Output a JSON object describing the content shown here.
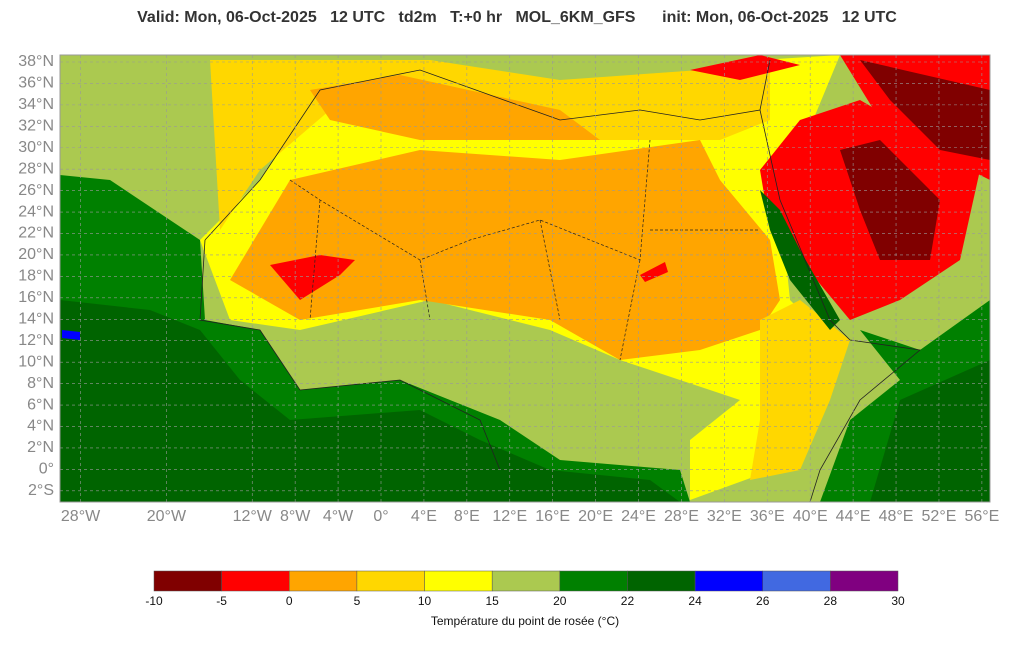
{
  "header": {
    "title": "Valid: Mon, 06-Oct-2025   12 UTC   td2m   T:+0 hr   MOL_6KM_GFS      init: Mon, 06-Oct-2025   12 UTC"
  },
  "map": {
    "lat_ticks": [
      {
        "value": 38,
        "label": "38°N"
      },
      {
        "value": 36,
        "label": "36°N"
      },
      {
        "value": 34,
        "label": "34°N"
      },
      {
        "value": 32,
        "label": "32°N"
      },
      {
        "value": 30,
        "label": "30°N"
      },
      {
        "value": 28,
        "label": "28°N"
      },
      {
        "value": 26,
        "label": "26°N"
      },
      {
        "value": 24,
        "label": "24°N"
      },
      {
        "value": 22,
        "label": "22°N"
      },
      {
        "value": 20,
        "label": "20°N"
      },
      {
        "value": 18,
        "label": "18°N"
      },
      {
        "value": 16,
        "label": "16°N"
      },
      {
        "value": 14,
        "label": "14°N"
      },
      {
        "value": 12,
        "label": "12°N"
      },
      {
        "value": 10,
        "label": "10°N"
      },
      {
        "value": 8,
        "label": "8°N"
      },
      {
        "value": 6,
        "label": "6°N"
      },
      {
        "value": 4,
        "label": "4°N"
      },
      {
        "value": 2,
        "label": "2°N"
      },
      {
        "value": 0,
        "label": "0°"
      },
      {
        "value": -2,
        "label": "2°S"
      }
    ],
    "lon_ticks": [
      {
        "value": -28,
        "label": "28°W"
      },
      {
        "value": -20,
        "label": "20°W"
      },
      {
        "value": -12,
        "label": "12°W"
      },
      {
        "value": -8,
        "label": "8°W"
      },
      {
        "value": -4,
        "label": "4°W"
      },
      {
        "value": 0,
        "label": "0°"
      },
      {
        "value": 4,
        "label": "4°E"
      },
      {
        "value": 8,
        "label": "8°E"
      },
      {
        "value": 12,
        "label": "12°E"
      },
      {
        "value": 16,
        "label": "16°E"
      },
      {
        "value": 20,
        "label": "20°E"
      },
      {
        "value": 24,
        "label": "24°E"
      },
      {
        "value": 28,
        "label": "28°E"
      },
      {
        "value": 32,
        "label": "32°E"
      },
      {
        "value": 36,
        "label": "36°E"
      },
      {
        "value": 40,
        "label": "40°E"
      },
      {
        "value": 44,
        "label": "44°E"
      },
      {
        "value": 48,
        "label": "48°E"
      },
      {
        "value": 52,
        "label": "52°E"
      },
      {
        "value": 56,
        "label": "56°E"
      }
    ]
  },
  "legend": {
    "ticks": [
      -10,
      -5,
      0,
      5,
      10,
      15,
      20,
      22,
      24,
      26,
      28,
      30
    ],
    "colors": [
      "#800000",
      "#ff0000",
      "#ffa500",
      "#ffd700",
      "#ffff00",
      "#abc950",
      "#008000",
      "#006400",
      "#0000ff",
      "#4169e1",
      "#800080"
    ],
    "label": "Température du point de rosée (°C)"
  }
}
